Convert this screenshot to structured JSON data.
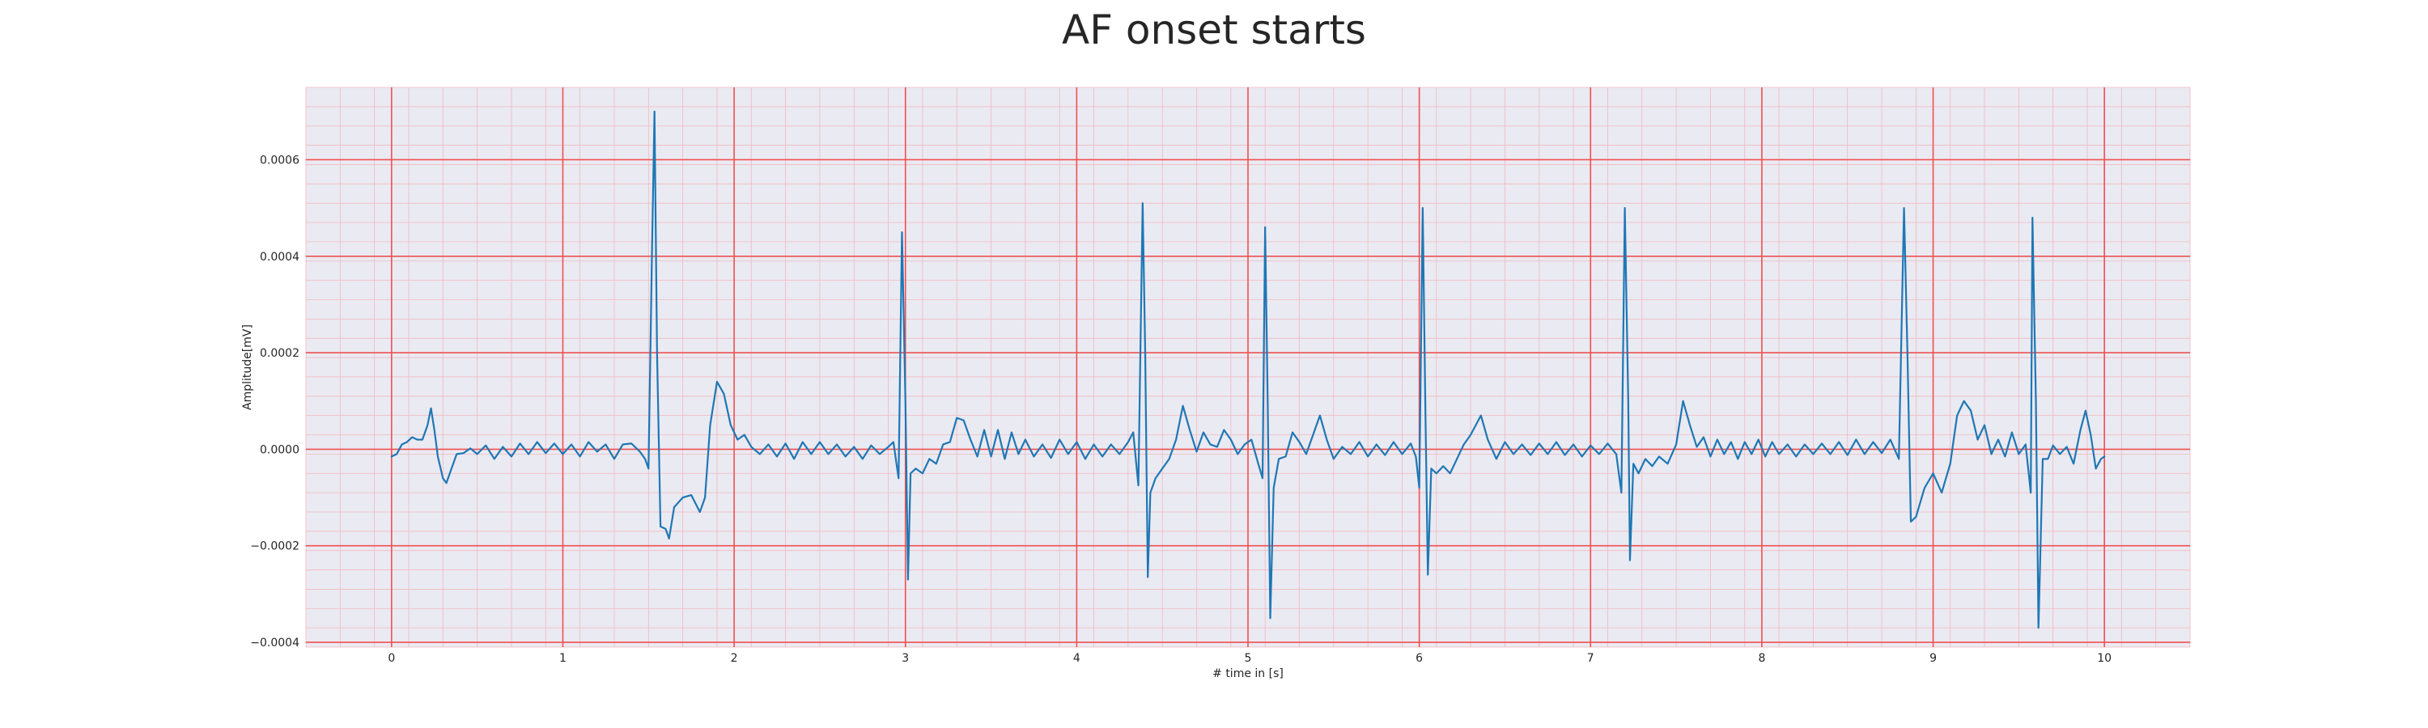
{
  "chart_data": {
    "type": "line",
    "title": "AF onset starts",
    "xlabel": "# time in [s]",
    "ylabel": "Amplitude[mV]",
    "xlim": [
      -0.5,
      10.5
    ],
    "ylim": [
      -0.00041,
      0.00075
    ],
    "xticks": [
      0,
      1,
      2,
      3,
      4,
      5,
      6,
      7,
      8,
      9,
      10
    ],
    "xtick_labels": [
      "0",
      "1",
      "2",
      "3",
      "4",
      "5",
      "6",
      "7",
      "8",
      "9",
      "10"
    ],
    "yticks": [
      -0.0004,
      -0.0002,
      0.0,
      0.0002,
      0.0004,
      0.0006
    ],
    "ytick_labels": [
      "−0.0004",
      "−0.0002",
      "0.0000",
      "0.0002",
      "0.0004",
      "0.0006"
    ],
    "grid": true,
    "minor_grid": true,
    "colors": {
      "plot_background": "#eaeaf2",
      "major_grid": "#f05050",
      "minor_grid": "#f2b8c0",
      "series": "#1f77b4",
      "text": "#262626"
    },
    "series": [
      {
        "points": [
          [
            0.0,
            -1.5e-05
          ],
          [
            0.03,
            -1e-05
          ],
          [
            0.06,
            1e-05
          ],
          [
            0.09,
            1.5e-05
          ],
          [
            0.12,
            2.5e-05
          ],
          [
            0.15,
            2e-05
          ],
          [
            0.18,
            2e-05
          ],
          [
            0.21,
            5e-05
          ],
          [
            0.23,
            8.5e-05
          ],
          [
            0.25,
            4e-05
          ],
          [
            0.27,
            -1.5e-05
          ],
          [
            0.3,
            -6e-05
          ],
          [
            0.32,
            -7e-05
          ],
          [
            0.35,
            -4e-05
          ],
          [
            0.38,
            -1e-05
          ],
          [
            0.42,
            -8e-06
          ],
          [
            0.46,
            2e-06
          ],
          [
            0.5,
            -1e-05
          ],
          [
            0.55,
            8e-06
          ],
          [
            0.6,
            -2e-05
          ],
          [
            0.65,
            5e-06
          ],
          [
            0.7,
            -1.5e-05
          ],
          [
            0.75,
            1.2e-05
          ],
          [
            0.8,
            -1e-05
          ],
          [
            0.85,
            1.5e-05
          ],
          [
            0.9,
            -8e-06
          ],
          [
            0.95,
            1.2e-05
          ],
          [
            1.0,
            -1e-05
          ],
          [
            1.05,
            1e-05
          ],
          [
            1.1,
            -1.5e-05
          ],
          [
            1.15,
            1.5e-05
          ],
          [
            1.2,
            -5e-06
          ],
          [
            1.25,
            1e-05
          ],
          [
            1.3,
            -2e-05
          ],
          [
            1.35,
            1e-05
          ],
          [
            1.4,
            1.2e-05
          ],
          [
            1.45,
            -5e-06
          ],
          [
            1.48,
            -2e-05
          ],
          [
            1.5,
            -4e-05
          ],
          [
            1.52,
            0.0004
          ],
          [
            1.535,
            0.0007
          ],
          [
            1.55,
            0.0002
          ],
          [
            1.57,
            -0.00016
          ],
          [
            1.6,
            -0.000165
          ],
          [
            1.62,
            -0.000185
          ],
          [
            1.65,
            -0.00012
          ],
          [
            1.7,
            -0.0001
          ],
          [
            1.75,
            -9.5e-05
          ],
          [
            1.8,
            -0.00013
          ],
          [
            1.83,
            -0.0001
          ],
          [
            1.86,
            5e-05
          ],
          [
            1.9,
            0.00014
          ],
          [
            1.94,
            0.000115
          ],
          [
            1.98,
            5e-05
          ],
          [
            2.02,
            2e-05
          ],
          [
            2.06,
            3e-05
          ],
          [
            2.1,
            5e-06
          ],
          [
            2.15,
            -1e-05
          ],
          [
            2.2,
            1e-05
          ],
          [
            2.25,
            -1.5e-05
          ],
          [
            2.3,
            1.2e-05
          ],
          [
            2.35,
            -2e-05
          ],
          [
            2.4,
            1.5e-05
          ],
          [
            2.45,
            -1e-05
          ],
          [
            2.5,
            1.5e-05
          ],
          [
            2.55,
            -1e-05
          ],
          [
            2.6,
            1e-05
          ],
          [
            2.65,
            -1.5e-05
          ],
          [
            2.7,
            5e-06
          ],
          [
            2.75,
            -2e-05
          ],
          [
            2.8,
            8e-06
          ],
          [
            2.85,
            -1e-05
          ],
          [
            2.9,
            5e-06
          ],
          [
            2.93,
            1.5e-05
          ],
          [
            2.96,
            -6e-05
          ],
          [
            2.98,
            0.00045
          ],
          [
            3.0,
            0.0001
          ],
          [
            3.015,
            -0.00027
          ],
          [
            3.03,
            -5e-05
          ],
          [
            3.06,
            -4e-05
          ],
          [
            3.1,
            -5e-05
          ],
          [
            3.14,
            -2e-05
          ],
          [
            3.18,
            -3e-05
          ],
          [
            3.22,
            1e-05
          ],
          [
            3.26,
            1.5e-05
          ],
          [
            3.3,
            6.5e-05
          ],
          [
            3.34,
            6e-05
          ],
          [
            3.38,
            2e-05
          ],
          [
            3.42,
            -1.5e-05
          ],
          [
            3.46,
            4e-05
          ],
          [
            3.5,
            -1.5e-05
          ],
          [
            3.54,
            4e-05
          ],
          [
            3.58,
            -2e-05
          ],
          [
            3.62,
            3.5e-05
          ],
          [
            3.66,
            -1e-05
          ],
          [
            3.7,
            2e-05
          ],
          [
            3.75,
            -1.5e-05
          ],
          [
            3.8,
            1e-05
          ],
          [
            3.85,
            -1.8e-05
          ],
          [
            3.9,
            2e-05
          ],
          [
            3.95,
            -1e-05
          ],
          [
            4.0,
            1.5e-05
          ],
          [
            4.05,
            -2e-05
          ],
          [
            4.1,
            1e-05
          ],
          [
            4.15,
            -1.5e-05
          ],
          [
            4.2,
            1e-05
          ],
          [
            4.25,
            -1e-05
          ],
          [
            4.3,
            1.5e-05
          ],
          [
            4.33,
            3.5e-05
          ],
          [
            4.36,
            -7.5e-05
          ],
          [
            4.385,
            0.00051
          ],
          [
            4.4,
            0.0002
          ],
          [
            4.415,
            -0.000265
          ],
          [
            4.43,
            -9e-05
          ],
          [
            4.46,
            -6e-05
          ],
          [
            4.5,
            -4e-05
          ],
          [
            4.54,
            -2e-05
          ],
          [
            4.58,
            2e-05
          ],
          [
            4.62,
            9e-05
          ],
          [
            4.66,
            4e-05
          ],
          [
            4.7,
            -5e-06
          ],
          [
            4.74,
            3.5e-05
          ],
          [
            4.78,
            1e-05
          ],
          [
            4.82,
            5e-06
          ],
          [
            4.86,
            4e-05
          ],
          [
            4.9,
            2e-05
          ],
          [
            4.94,
            -1e-05
          ],
          [
            4.98,
            1e-05
          ],
          [
            5.02,
            2e-05
          ],
          [
            5.06,
            -3e-05
          ],
          [
            5.085,
            -6e-05
          ],
          [
            5.1,
            0.00046
          ],
          [
            5.115,
            0.0001
          ],
          [
            5.13,
            -0.00035
          ],
          [
            5.15,
            -8e-05
          ],
          [
            5.18,
            -2e-05
          ],
          [
            5.22,
            -1.5e-05
          ],
          [
            5.26,
            3.5e-05
          ],
          [
            5.3,
            1.5e-05
          ],
          [
            5.34,
            -1e-05
          ],
          [
            5.38,
            3e-05
          ],
          [
            5.42,
            7e-05
          ],
          [
            5.46,
            2e-05
          ],
          [
            5.5,
            -2e-05
          ],
          [
            5.55,
            5e-06
          ],
          [
            5.6,
            -1e-05
          ],
          [
            5.65,
            1.5e-05
          ],
          [
            5.7,
            -1.5e-05
          ],
          [
            5.75,
            1e-05
          ],
          [
            5.8,
            -1.2e-05
          ],
          [
            5.85,
            1.5e-05
          ],
          [
            5.9,
            -1e-05
          ],
          [
            5.95,
            1.2e-05
          ],
          [
            5.98,
            -1.5e-05
          ],
          [
            6.0,
            -8e-05
          ],
          [
            6.02,
            0.0005
          ],
          [
            6.035,
            0.0001
          ],
          [
            6.05,
            -0.00026
          ],
          [
            6.07,
            -4e-05
          ],
          [
            6.1,
            -5e-05
          ],
          [
            6.14,
            -3.5e-05
          ],
          [
            6.18,
            -5e-05
          ],
          [
            6.22,
            -2e-05
          ],
          [
            6.26,
            1e-05
          ],
          [
            6.3,
            3e-05
          ],
          [
            6.36,
            7e-05
          ],
          [
            6.4,
            2e-05
          ],
          [
            6.45,
            -2e-05
          ],
          [
            6.5,
            1.5e-05
          ],
          [
            6.55,
            -1e-05
          ],
          [
            6.6,
            1e-05
          ],
          [
            6.65,
            -1.2e-05
          ],
          [
            6.7,
            1.2e-05
          ],
          [
            6.75,
            -1e-05
          ],
          [
            6.8,
            1.5e-05
          ],
          [
            6.85,
            -1.2e-05
          ],
          [
            6.9,
            1e-05
          ],
          [
            6.95,
            -1.5e-05
          ],
          [
            7.0,
            8e-06
          ],
          [
            7.05,
            -1e-05
          ],
          [
            7.1,
            1.2e-05
          ],
          [
            7.15,
            -1e-05
          ],
          [
            7.18,
            -9e-05
          ],
          [
            7.2,
            0.0005
          ],
          [
            7.22,
            0.0001
          ],
          [
            7.23,
            -0.00023
          ],
          [
            7.25,
            -3e-05
          ],
          [
            7.28,
            -5e-05
          ],
          [
            7.32,
            -2e-05
          ],
          [
            7.36,
            -3.5e-05
          ],
          [
            7.4,
            -1.5e-05
          ],
          [
            7.45,
            -3e-05
          ],
          [
            7.5,
            1e-05
          ],
          [
            7.54,
            0.0001
          ],
          [
            7.58,
            5e-05
          ],
          [
            7.62,
            5e-06
          ],
          [
            7.66,
            2.5e-05
          ],
          [
            7.7,
            -1.5e-05
          ],
          [
            7.74,
            2e-05
          ],
          [
            7.78,
            -1e-05
          ],
          [
            7.82,
            1.5e-05
          ],
          [
            7.86,
            -2e-05
          ],
          [
            7.9,
            1.5e-05
          ],
          [
            7.94,
            -1e-05
          ],
          [
            7.98,
            2e-05
          ],
          [
            8.02,
            -1.5e-05
          ],
          [
            8.06,
            1.5e-05
          ],
          [
            8.1,
            -1e-05
          ],
          [
            8.15,
            1e-05
          ],
          [
            8.2,
            -1.5e-05
          ],
          [
            8.25,
            1e-05
          ],
          [
            8.3,
            -1e-05
          ],
          [
            8.35,
            1.2e-05
          ],
          [
            8.4,
            -1e-05
          ],
          [
            8.45,
            1.5e-05
          ],
          [
            8.5,
            -1.2e-05
          ],
          [
            8.55,
            2e-05
          ],
          [
            8.6,
            -1e-05
          ],
          [
            8.65,
            1.5e-05
          ],
          [
            8.7,
            -8e-06
          ],
          [
            8.75,
            2e-05
          ],
          [
            8.8,
            -2e-05
          ],
          [
            8.83,
            0.0005
          ],
          [
            8.85,
            0.0002
          ],
          [
            8.87,
            -0.00015
          ],
          [
            8.9,
            -0.00014
          ],
          [
            8.95,
            -8e-05
          ],
          [
            9.0,
            -5e-05
          ],
          [
            9.05,
            -9e-05
          ],
          [
            9.1,
            -3e-05
          ],
          [
            9.14,
            7e-05
          ],
          [
            9.18,
            0.0001
          ],
          [
            9.22,
            8e-05
          ],
          [
            9.26,
            2e-05
          ],
          [
            9.3,
            5e-05
          ],
          [
            9.34,
            -1e-05
          ],
          [
            9.38,
            2e-05
          ],
          [
            9.42,
            -1.5e-05
          ],
          [
            9.46,
            3.5e-05
          ],
          [
            9.5,
            -1e-05
          ],
          [
            9.54,
            1e-05
          ],
          [
            9.57,
            -9e-05
          ],
          [
            9.58,
            0.00048
          ],
          [
            9.6,
            0.0001
          ],
          [
            9.615,
            -0.00037
          ],
          [
            9.64,
            -2e-05
          ],
          [
            9.67,
            -2e-05
          ],
          [
            9.7,
            8e-06
          ],
          [
            9.74,
            -1e-05
          ],
          [
            9.78,
            5e-06
          ],
          [
            9.82,
            -3e-05
          ],
          [
            9.86,
            4e-05
          ],
          [
            9.89,
            8e-05
          ],
          [
            9.92,
            3e-05
          ],
          [
            9.95,
            -4e-05
          ],
          [
            9.98,
            -2e-05
          ],
          [
            10.0,
            -1.5e-05
          ]
        ]
      }
    ]
  }
}
